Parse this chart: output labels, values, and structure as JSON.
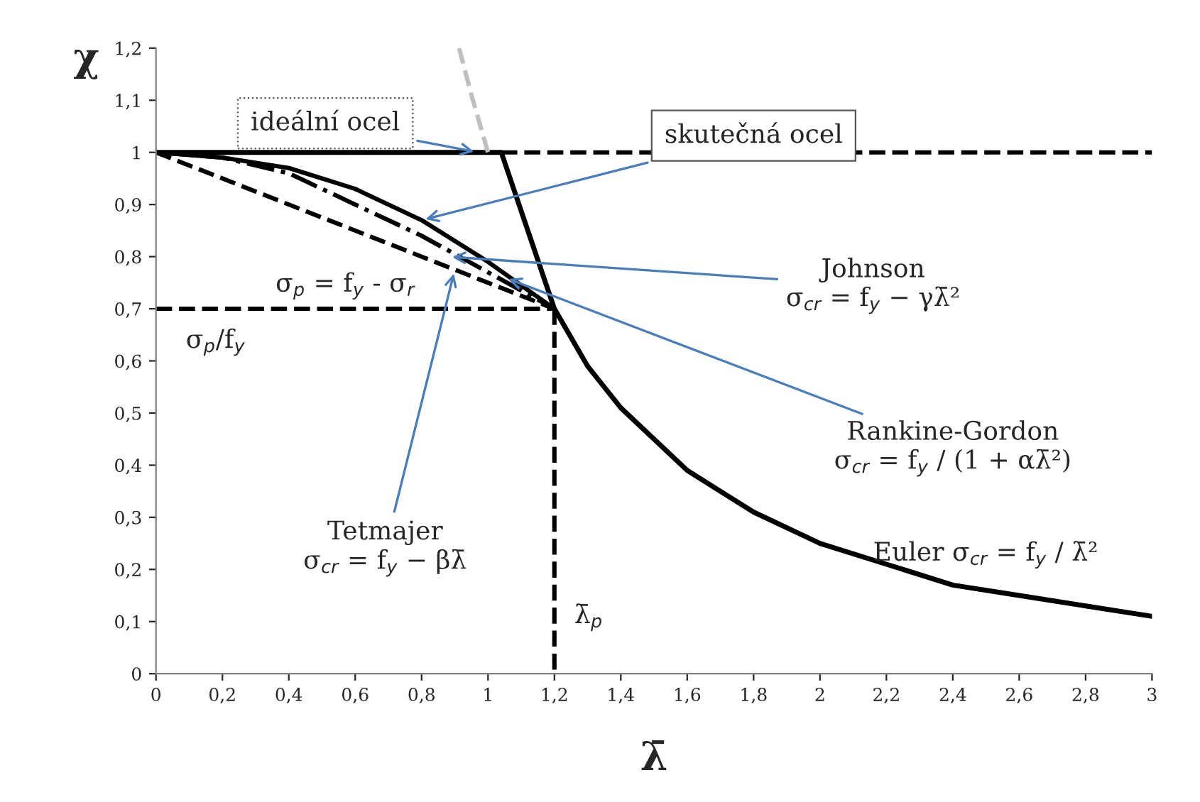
{
  "chart_data": {
    "type": "line",
    "xlabel": "λ̄",
    "ylabel": "χ",
    "xlim": [
      0,
      3
    ],
    "ylim": [
      0,
      1.2
    ],
    "xticks": [
      0,
      {
        "value": 0.2,
        "label": "0,2"
      },
      {
        "value": 0.4,
        "label": "0,4"
      },
      {
        "value": 0.6,
        "label": "0,6"
      },
      {
        "value": 0.8,
        "label": "0,8"
      },
      1,
      {
        "value": 1.2,
        "label": "1,2"
      },
      {
        "value": 1.4,
        "label": "1,4"
      },
      {
        "value": 1.6,
        "label": "1,6"
      },
      {
        "value": 1.8,
        "label": "1,8"
      },
      2,
      {
        "value": 2.2,
        "label": "2,2"
      },
      {
        "value": 2.4,
        "label": "2,4"
      },
      {
        "value": 2.6,
        "label": "2,6"
      },
      {
        "value": 2.8,
        "label": "2,8"
      },
      3
    ],
    "yticks": [
      0,
      {
        "value": 0.1,
        "label": "0,1"
      },
      {
        "value": 0.2,
        "label": "0,2"
      },
      {
        "value": 0.3,
        "label": "0,3"
      },
      {
        "value": 0.4,
        "label": "0,4"
      },
      {
        "value": 0.5,
        "label": "0,5"
      },
      {
        "value": 0.6,
        "label": "0,6"
      },
      {
        "value": 0.7,
        "label": "0,7"
      },
      {
        "value": 0.8,
        "label": "0,8"
      },
      {
        "value": 0.9,
        "label": "0,9"
      },
      1,
      {
        "value": 1.1,
        "label": "1,1"
      },
      {
        "value": 1.2,
        "label": "1,2"
      }
    ],
    "grid": false,
    "legend": false,
    "series": [
      {
        "color": "#000000",
        "line_style": "solid",
        "x": [
          0,
          1.04,
          1.2,
          1.3,
          1.4,
          1.6,
          1.8,
          2.0,
          2.2,
          2.4,
          2.6,
          2.8,
          3.0
        ],
        "values": [
          1,
          1,
          0.7,
          0.59,
          0.51,
          0.39,
          0.31,
          0.25,
          0.21,
          0.17,
          0.15,
          0.13,
          0.11
        ]
      },
      {
        "color": "#000000",
        "line_style": "dashed",
        "x": [
          1.04,
          3
        ],
        "values": [
          1,
          1
        ]
      },
      {
        "color": "#bfbfbf",
        "line_style": "dashed",
        "x": [
          0.913,
          0.95,
          1.0
        ],
        "values": [
          1.2,
          1.11,
          1.0
        ]
      },
      {
        "color": "#000000",
        "line_style": "solid",
        "x": [
          0,
          0.2,
          0.4,
          0.6,
          0.8,
          1.0,
          1.2
        ],
        "values": [
          1,
          0.99,
          0.97,
          0.93,
          0.87,
          0.79,
          0.7
        ]
      },
      {
        "color": "#000000",
        "line_style": "dashdot",
        "x": [
          0,
          0.2,
          0.4,
          0.6,
          0.8,
          1.0,
          1.2
        ],
        "values": [
          1,
          0.99,
          0.96,
          0.9,
          0.84,
          0.77,
          0.7
        ]
      },
      {
        "color": "#000000",
        "line_style": "dashed",
        "x": [
          0,
          1.2
        ],
        "values": [
          1,
          0.7
        ]
      },
      {
        "color": "#000000",
        "line_style": "dashed",
        "x": [
          0,
          1.2
        ],
        "values": [
          0.7,
          0.7
        ]
      },
      {
        "color": "#000000",
        "line_style": "dashed",
        "x": [
          1.2,
          1.2
        ],
        "values": [
          0.7,
          0
        ]
      }
    ],
    "annotations": [
      {
        "text": "ideální ocel",
        "x": 0.97,
        "y": 1
      },
      {
        "text": "skutečná ocel",
        "x": 0.8,
        "y": 0.87
      },
      {
        "text": "Johnson\nσ$_{cr}$ = f$_{y}$ − γλ̄²",
        "x": 0.88,
        "y": 0.8
      },
      {
        "text": "Rankine-Gordon\nσ$_{cr}$ = f$_{y}$ / (1 + αλ̄²)",
        "x": 1.05,
        "y": 0.76
      },
      {
        "text": "Tetmajer\nσ$_{cr}$ = f$_{y}$ − βλ̄",
        "x": 0.9,
        "y": 0.775
      },
      "Euler σ$_{cr}$ = f$_{y}$ / λ̄²",
      "σ$_{p}$ = f$_{y}$ - σ$_{r}$",
      "σ$_{p}$/f$_{y}$",
      "λ̄$_{p}$"
    ]
  }
}
